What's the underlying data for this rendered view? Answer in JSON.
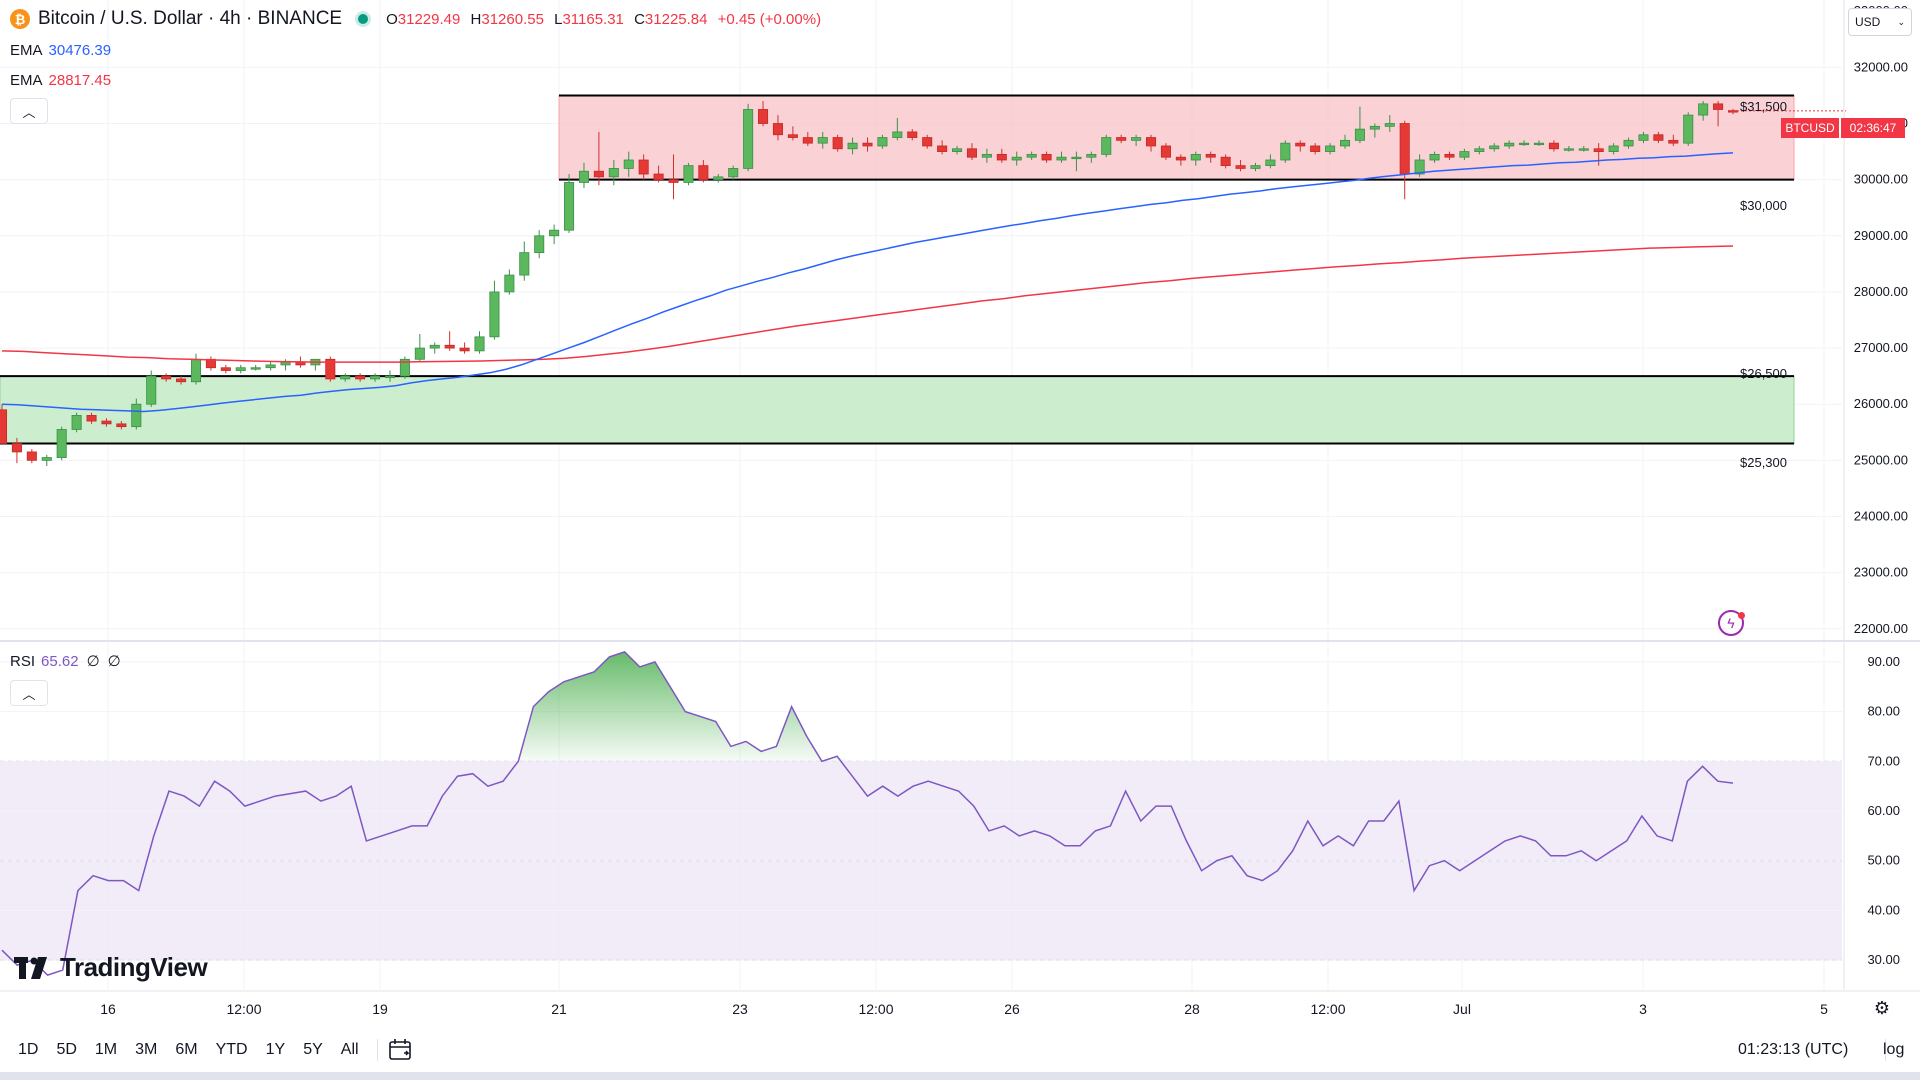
{
  "header": {
    "symbol_title": "Bitcoin / U.S. Dollar · 4h · BINANCE",
    "ohlc": {
      "o_label": "O",
      "o": "31229.49",
      "h_label": "H",
      "h": "31260.55",
      "l_label": "L",
      "l": "31165.31",
      "c_label": "C",
      "c": "31225.84",
      "change": "+0.45 (+0.00%)"
    }
  },
  "legend": {
    "ema1": {
      "name": "EMA",
      "value": "30476.39",
      "color": "#2962ff"
    },
    "ema2": {
      "name": "EMA",
      "value": "28817.45",
      "color": "#f23645"
    },
    "rsi": {
      "name": "RSI",
      "value": "65.62",
      "extra1": "∅",
      "extra2": "∅",
      "color": "#7e57c2"
    }
  },
  "currency": {
    "label": "USD"
  },
  "badges": {
    "symbol": "BTCUSD",
    "countdown": "02:36:47"
  },
  "levels": {
    "l1": "$31,500",
    "l2": "$30,000",
    "l3": "$26,500",
    "l4": "$25,300"
  },
  "timeframes": [
    "1D",
    "5D",
    "1M",
    "3M",
    "6M",
    "YTD",
    "1Y",
    "5Y",
    "All"
  ],
  "footer": {
    "clock": "01:23:13 (UTC)",
    "log": "log"
  },
  "brand": {
    "name": "TradingView"
  },
  "colors": {
    "up": "#26a69a",
    "down": "#ef5350",
    "up_body": "#66bb6a",
    "resistance_fill": "#f8c3c7",
    "support_fill": "#c8ecc9",
    "rsi_band": "#ede7f6"
  },
  "chart_data": [
    {
      "type": "candlestick",
      "title": "Bitcoin / U.S. Dollar · 4h · BINANCE",
      "y_ticks": [
        "22000.00",
        "23000.00",
        "24000.00",
        "25000.00",
        "26000.00",
        "27000.00",
        "28000.00",
        "29000.00",
        "30000.00",
        "31000.00",
        "32000.00"
      ],
      "ylim": [
        21800,
        33200
      ],
      "x_ticks": [
        "16",
        "12:00",
        "19",
        "21",
        "23",
        "12:00",
        "26",
        "28",
        "12:00",
        "Jul",
        "3",
        "5"
      ],
      "zones": [
        {
          "name": "resistance",
          "from": 30000,
          "to": 31500,
          "top_label": "$31,500",
          "bottom_label": "$30,000"
        },
        {
          "name": "support",
          "from": 25300,
          "to": 26500,
          "top_label": "$26,500",
          "bottom_label": "$25,300"
        }
      ],
      "candles": [
        [
          25900,
          26000,
          25300,
          25300
        ],
        [
          25300,
          25400,
          24950,
          25150
        ],
        [
          25150,
          25200,
          24950,
          25000
        ],
        [
          25000,
          25100,
          24900,
          25050
        ],
        [
          25050,
          25600,
          25000,
          25550
        ],
        [
          25550,
          25850,
          25500,
          25800
        ],
        [
          25800,
          25850,
          25650,
          25700
        ],
        [
          25700,
          25750,
          25600,
          25650
        ],
        [
          25650,
          25700,
          25550,
          25600
        ],
        [
          25600,
          26100,
          25550,
          26000
        ],
        [
          26000,
          26600,
          25950,
          26500
        ],
        [
          26500,
          26550,
          26400,
          26450
        ],
        [
          26450,
          26500,
          26350,
          26400
        ],
        [
          26400,
          26900,
          26350,
          26800
        ],
        [
          26800,
          26850,
          26600,
          26650
        ],
        [
          26650,
          26700,
          26550,
          26600
        ],
        [
          26600,
          26700,
          26550,
          26650
        ],
        [
          26650,
          26700,
          26600,
          26650
        ],
        [
          26650,
          26750,
          26600,
          26700
        ],
        [
          26700,
          26800,
          26600,
          26750
        ],
        [
          26750,
          26850,
          26650,
          26700
        ],
        [
          26700,
          26800,
          26600,
          26800
        ],
        [
          26800,
          26850,
          26400,
          26450
        ],
        [
          26450,
          26550,
          26400,
          26500
        ],
        [
          26500,
          26550,
          26400,
          26450
        ],
        [
          26450,
          26550,
          26400,
          26500
        ],
        [
          26500,
          26600,
          26400,
          26500
        ],
        [
          26500,
          26850,
          26450,
          26800
        ],
        [
          26800,
          27250,
          26750,
          27000
        ],
        [
          27000,
          27100,
          26900,
          27050
        ],
        [
          27050,
          27300,
          26950,
          27000
        ],
        [
          27000,
          27100,
          26900,
          26950
        ],
        [
          26950,
          27300,
          26900,
          27200
        ],
        [
          27200,
          28200,
          27150,
          28000
        ],
        [
          28000,
          28400,
          27950,
          28300
        ],
        [
          28300,
          28900,
          28200,
          28700
        ],
        [
          28700,
          29100,
          28600,
          29000
        ],
        [
          29000,
          29200,
          28850,
          29100
        ],
        [
          29100,
          30100,
          29050,
          29950
        ],
        [
          29950,
          30300,
          29850,
          30150
        ],
        [
          30150,
          30850,
          29900,
          30050
        ],
        [
          30050,
          30350,
          29900,
          30200
        ],
        [
          30200,
          30500,
          30050,
          30350
        ],
        [
          30350,
          30450,
          30000,
          30100
        ],
        [
          30100,
          30250,
          29950,
          30000
        ],
        [
          30000,
          30450,
          29650,
          29950
        ],
        [
          29950,
          30300,
          29900,
          30250
        ],
        [
          30250,
          30350,
          29950,
          30000
        ],
        [
          30000,
          30100,
          29950,
          30050
        ],
        [
          30050,
          30250,
          30000,
          30200
        ],
        [
          30200,
          31350,
          30150,
          31250
        ],
        [
          31250,
          31400,
          30950,
          31000
        ],
        [
          31000,
          31150,
          30700,
          30800
        ],
        [
          30800,
          30950,
          30700,
          30750
        ],
        [
          30750,
          30850,
          30600,
          30650
        ],
        [
          30650,
          30850,
          30550,
          30750
        ],
        [
          30750,
          30800,
          30500,
          30550
        ],
        [
          30550,
          30750,
          30450,
          30650
        ],
        [
          30650,
          30750,
          30500,
          30600
        ],
        [
          30600,
          30800,
          30550,
          30750
        ],
        [
          30750,
          31100,
          30700,
          30850
        ],
        [
          30850,
          30900,
          30700,
          30750
        ],
        [
          30750,
          30800,
          30550,
          30600
        ],
        [
          30600,
          30700,
          30450,
          30500
        ],
        [
          30500,
          30600,
          30450,
          30550
        ],
        [
          30550,
          30650,
          30350,
          30400
        ],
        [
          30400,
          30550,
          30300,
          30450
        ],
        [
          30450,
          30550,
          30300,
          30350
        ],
        [
          30350,
          30500,
          30250,
          30400
        ],
        [
          30400,
          30500,
          30350,
          30450
        ],
        [
          30450,
          30500,
          30300,
          30350
        ],
        [
          30350,
          30500,
          30300,
          30400
        ],
        [
          30400,
          30500,
          30150,
          30400
        ],
        [
          30400,
          30500,
          30300,
          30450
        ],
        [
          30450,
          30800,
          30400,
          30750
        ],
        [
          30750,
          30800,
          30650,
          30700
        ],
        [
          30700,
          30800,
          30600,
          30750
        ],
        [
          30750,
          30800,
          30500,
          30600
        ],
        [
          30600,
          30650,
          30350,
          30400
        ],
        [
          30400,
          30450,
          30250,
          30350
        ],
        [
          30350,
          30500,
          30250,
          30450
        ],
        [
          30450,
          30500,
          30300,
          30400
        ],
        [
          30400,
          30450,
          30200,
          30250
        ],
        [
          30250,
          30350,
          30150,
          30200
        ],
        [
          30200,
          30300,
          30150,
          30250
        ],
        [
          30250,
          30450,
          30200,
          30350
        ],
        [
          30350,
          30700,
          30300,
          30650
        ],
        [
          30650,
          30700,
          30500,
          30600
        ],
        [
          30600,
          30650,
          30450,
          30500
        ],
        [
          30500,
          30650,
          30450,
          30600
        ],
        [
          30600,
          30800,
          30550,
          30700
        ],
        [
          30700,
          31300,
          30650,
          30900
        ],
        [
          30900,
          31000,
          30750,
          30950
        ],
        [
          30950,
          31150,
          30850,
          31000
        ],
        [
          31000,
          31050,
          29650,
          30100
        ],
        [
          30100,
          30450,
          30050,
          30350
        ],
        [
          30350,
          30500,
          30300,
          30450
        ],
        [
          30450,
          30500,
          30350,
          30400
        ],
        [
          30400,
          30550,
          30350,
          30500
        ],
        [
          30500,
          30600,
          30450,
          30550
        ],
        [
          30550,
          30650,
          30500,
          30600
        ],
        [
          30600,
          30700,
          30550,
          30650
        ],
        [
          30650,
          30700,
          30600,
          30650
        ],
        [
          30650,
          30700,
          30600,
          30650
        ],
        [
          30650,
          30700,
          30500,
          30550
        ],
        [
          30550,
          30600,
          30500,
          30550
        ],
        [
          30550,
          30600,
          30500,
          30550
        ],
        [
          30550,
          30650,
          30250,
          30500
        ],
        [
          30500,
          30650,
          30450,
          30600
        ],
        [
          30600,
          30750,
          30550,
          30700
        ],
        [
          30700,
          30850,
          30650,
          30800
        ],
        [
          30800,
          30850,
          30650,
          30700
        ],
        [
          30700,
          30800,
          30600,
          30650
        ],
        [
          30650,
          31200,
          30600,
          31150
        ],
        [
          31150,
          31400,
          31050,
          31350
        ],
        [
          31350,
          31400,
          30950,
          31250
        ],
        [
          31229.49,
          31260.55,
          31165.31,
          31225.84
        ]
      ],
      "ema_blue": [
        26000,
        25990,
        25970,
        25950,
        25930,
        25910,
        25900,
        25890,
        25880,
        25870,
        25890,
        25920,
        25950,
        25985,
        26020,
        26050,
        26080,
        26110,
        26140,
        26160,
        26200,
        26230,
        26260,
        26280,
        26300,
        26330,
        26380,
        26420,
        26450,
        26480,
        26520,
        26560,
        26620,
        26700,
        26800,
        26900,
        27000,
        27100,
        27210,
        27320,
        27430,
        27530,
        27640,
        27740,
        27840,
        27930,
        28030,
        28110,
        28190,
        28260,
        28340,
        28410,
        28490,
        28570,
        28640,
        28700,
        28760,
        28820,
        28880,
        28930,
        28980,
        29030,
        29080,
        29130,
        29180,
        29220,
        29270,
        29310,
        29360,
        29400,
        29440,
        29480,
        29520,
        29560,
        29590,
        29630,
        29660,
        29700,
        29740,
        29770,
        29800,
        29840,
        29870,
        29900,
        29930,
        29960,
        29990,
        30030,
        30060,
        30090,
        30120,
        30150,
        30170,
        30190,
        30210,
        30230,
        30250,
        30260,
        30280,
        30300,
        30310,
        30330,
        30350,
        30360,
        30380,
        30390,
        30410,
        30420,
        30440,
        30460,
        30476.39
      ],
      "ema_red": [
        26950,
        26940,
        26920,
        26900,
        26880,
        26860,
        26840,
        26830,
        26810,
        26800,
        26790,
        26780,
        26770,
        26760,
        26755,
        26750,
        26750,
        26750,
        26750,
        26750,
        26755,
        26760,
        26765,
        26770,
        26780,
        26790,
        26800,
        26820,
        26850,
        26890,
        26930,
        26980,
        27030,
        27090,
        27150,
        27210,
        27270,
        27330,
        27390,
        27440,
        27490,
        27540,
        27590,
        27640,
        27690,
        27740,
        27790,
        27840,
        27880,
        27930,
        27970,
        28010,
        28050,
        28090,
        28130,
        28170,
        28200,
        28240,
        28270,
        28300,
        28330,
        28360,
        28390,
        28420,
        28450,
        28470,
        28500,
        28520,
        28550,
        28570,
        28600,
        28620,
        28640,
        28660,
        28680,
        28700,
        28720,
        28740,
        28760,
        28780,
        28790,
        28800,
        28810,
        28817.45
      ],
      "ema_blue_name": "EMA",
      "ema_red_name": "EMA"
    },
    {
      "type": "line",
      "name": "RSI",
      "y_ticks": [
        "30.00",
        "40.00",
        "50.00",
        "60.00",
        "70.00",
        "80.00",
        "90.00"
      ],
      "ylim": [
        24,
        94
      ],
      "upper_band": 70,
      "middle_band": 50,
      "lower_band": 30,
      "values": [
        32,
        29,
        30,
        27,
        28,
        44,
        47,
        46,
        46,
        44,
        55,
        64,
        63,
        61,
        66,
        64,
        61,
        62,
        63,
        63.5,
        64,
        62,
        63,
        65,
        54,
        55,
        56,
        57,
        57,
        63,
        67,
        67.5,
        65,
        66,
        70,
        81,
        84,
        86,
        87,
        88,
        91,
        92,
        89,
        90,
        85,
        80,
        79,
        78,
        73,
        74,
        72,
        73,
        81,
        75,
        70,
        71,
        67,
        63,
        65,
        63,
        65,
        66,
        65,
        64,
        61,
        56,
        57,
        55,
        56,
        55,
        53,
        53,
        56,
        57,
        64,
        58,
        61,
        61,
        54,
        48,
        50,
        51,
        47,
        46,
        48,
        52,
        58,
        53,
        55,
        53,
        58,
        58,
        62,
        44,
        49,
        50,
        48,
        50,
        52,
        54,
        55,
        54,
        51,
        51,
        52,
        50,
        52,
        54,
        59,
        55,
        54,
        66,
        69,
        66,
        65.62
      ]
    }
  ]
}
